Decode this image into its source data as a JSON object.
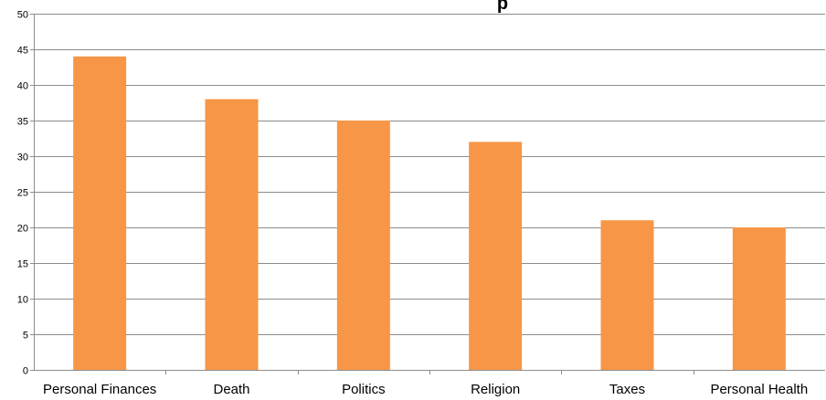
{
  "chart_data": {
    "type": "bar",
    "title": "p",
    "categories": [
      "Personal Finances",
      "Death",
      "Politics",
      "Religion",
      "Taxes",
      "Personal Health"
    ],
    "values": [
      44,
      38,
      35,
      32,
      21,
      20
    ],
    "y_ticks": [
      "0",
      "5",
      "10",
      "15",
      "20",
      "25",
      "30",
      "35",
      "40",
      "45",
      "50"
    ],
    "ylim": [
      0,
      50
    ],
    "grid": true,
    "legend": "none",
    "bar_color": "#F79646"
  }
}
